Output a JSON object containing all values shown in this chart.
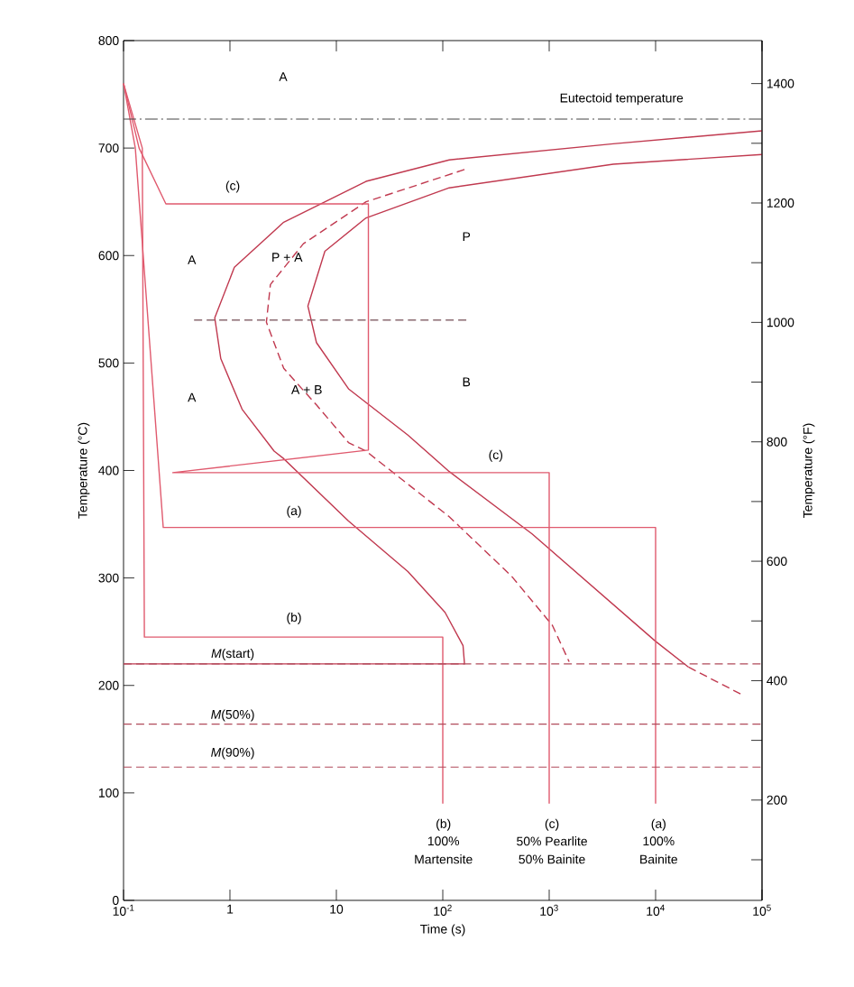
{
  "chart_data": {
    "type": "line",
    "xlabel": "Time (s)",
    "ylabel": "Temperature (°C)",
    "y2label": "Temperature (°F)",
    "log": "x",
    "xlim": [
      0.1,
      100000
    ],
    "ylim": [
      0,
      800
    ],
    "y2lim": [
      32,
      1472
    ],
    "xticks": [
      {
        "value": 0.1,
        "label": "10$^{-1}$"
      },
      1,
      10,
      {
        "value": 100,
        "label": "10$^{2}$"
      },
      {
        "value": 1000,
        "label": "10$^{3}$"
      },
      {
        "value": 10000,
        "label": "10$^{4}$"
      },
      {
        "value": 100000,
        "label": "10$^{5}$"
      }
    ],
    "yticks": [
      0,
      100,
      200,
      300,
      400,
      500,
      600,
      700,
      800
    ],
    "y2ticks": [
      {
        "value": 100,
        "label": null
      },
      200,
      {
        "value": 300,
        "label": null
      },
      400,
      {
        "value": 500,
        "label": null
      },
      600,
      {
        "value": 700,
        "label": null
      },
      800,
      {
        "value": 900,
        "label": null
      },
      1000,
      {
        "value": 1100,
        "label": null
      },
      1200,
      {
        "value": 1300,
        "label": null
      },
      1400
    ],
    "series": [
      {
        "color": "#c0394f",
        "line_style": "solid",
        "x": [
          100000,
          4000,
          115,
          19,
          3.2,
          1.1,
          0.72,
          0.82,
          1.3,
          2.6,
          3.2,
          13,
          47,
          105,
          155,
          160,
          0.1
        ],
        "values": [
          716,
          704,
          689,
          669,
          631,
          589,
          542,
          504,
          457,
          418,
          411,
          353,
          306,
          268,
          237,
          220,
          220
        ]
      },
      {
        "color": "#c0394f",
        "line_style": "dashed",
        "x": [
          160,
          19,
          4.9,
          2.4,
          2.2,
          3.2,
          6.5,
          13,
          19,
          115,
          440,
          1070,
          1540
        ],
        "values": [
          680,
          650,
          611,
          573,
          538,
          495,
          461,
          426,
          418,
          357,
          302,
          256,
          222
        ]
      },
      {
        "color": "#c0394f",
        "line_style": "solid",
        "x": [
          100000,
          4000,
          115,
          19,
          7.8,
          5.4,
          6.5,
          13,
          47,
          115,
          690,
          10000,
          20400
        ],
        "values": [
          694,
          685,
          663,
          635,
          604,
          553,
          519,
          476,
          433,
          399,
          341,
          241,
          217
        ]
      },
      {
        "color": "#c0394f",
        "line_style": "dashed",
        "x": [
          20400,
          66000
        ],
        "values": [
          217,
          191
        ]
      },
      {
        "color": "#8a6a70",
        "line_style": "dashed",
        "x": [
          0.46,
          170
        ],
        "values": [
          540,
          540
        ]
      },
      {
        "color": "#e05a6e",
        "line_style": "solid",
        "x": [
          0.1,
          0.129,
          0.236,
          10000,
          10000
        ],
        "values": [
          760,
          700,
          347,
          347,
          90
        ]
      },
      {
        "color": "#e05a6e",
        "line_style": "solid",
        "x": [
          0.1,
          0.15,
          0.157,
          100,
          100
        ],
        "values": [
          760,
          700,
          245,
          245,
          90
        ]
      },
      {
        "color": "#e05a6e",
        "line_style": "solid",
        "x": [
          0.1,
          0.14,
          0.25,
          20,
          20,
          0.29,
          1000,
          1000
        ],
        "values": [
          760,
          700,
          648,
          648,
          419,
          398,
          398,
          90
        ]
      }
    ],
    "ref_lines": [
      {
        "axis": "y",
        "value": 727,
        "color": "#444444",
        "line_style": "dashdot"
      },
      {
        "axis": "y",
        "value": 220,
        "color": "#b04a5a",
        "line_style": "dashed"
      },
      {
        "axis": "y",
        "value": 164,
        "color": "#b04a5a",
        "line_style": "dashed"
      },
      {
        "axis": "y",
        "value": 124,
        "color": "#b04a5a",
        "line_style": "dashed"
      }
    ],
    "annotations": [
      "Eutectoid temperature",
      "A",
      "A",
      "A",
      "P + A",
      "A + B",
      "P",
      "B",
      "(c)",
      "(c)",
      "(a)",
      "(b)",
      "*M*(start)",
      "*M*(50%)",
      "*M*(90%)",
      "(b)",
      "100%",
      "Martensite",
      "(c)",
      "50% Pearlite",
      "50% Bainite",
      "(a)",
      "100%",
      "Bainite"
    ]
  }
}
